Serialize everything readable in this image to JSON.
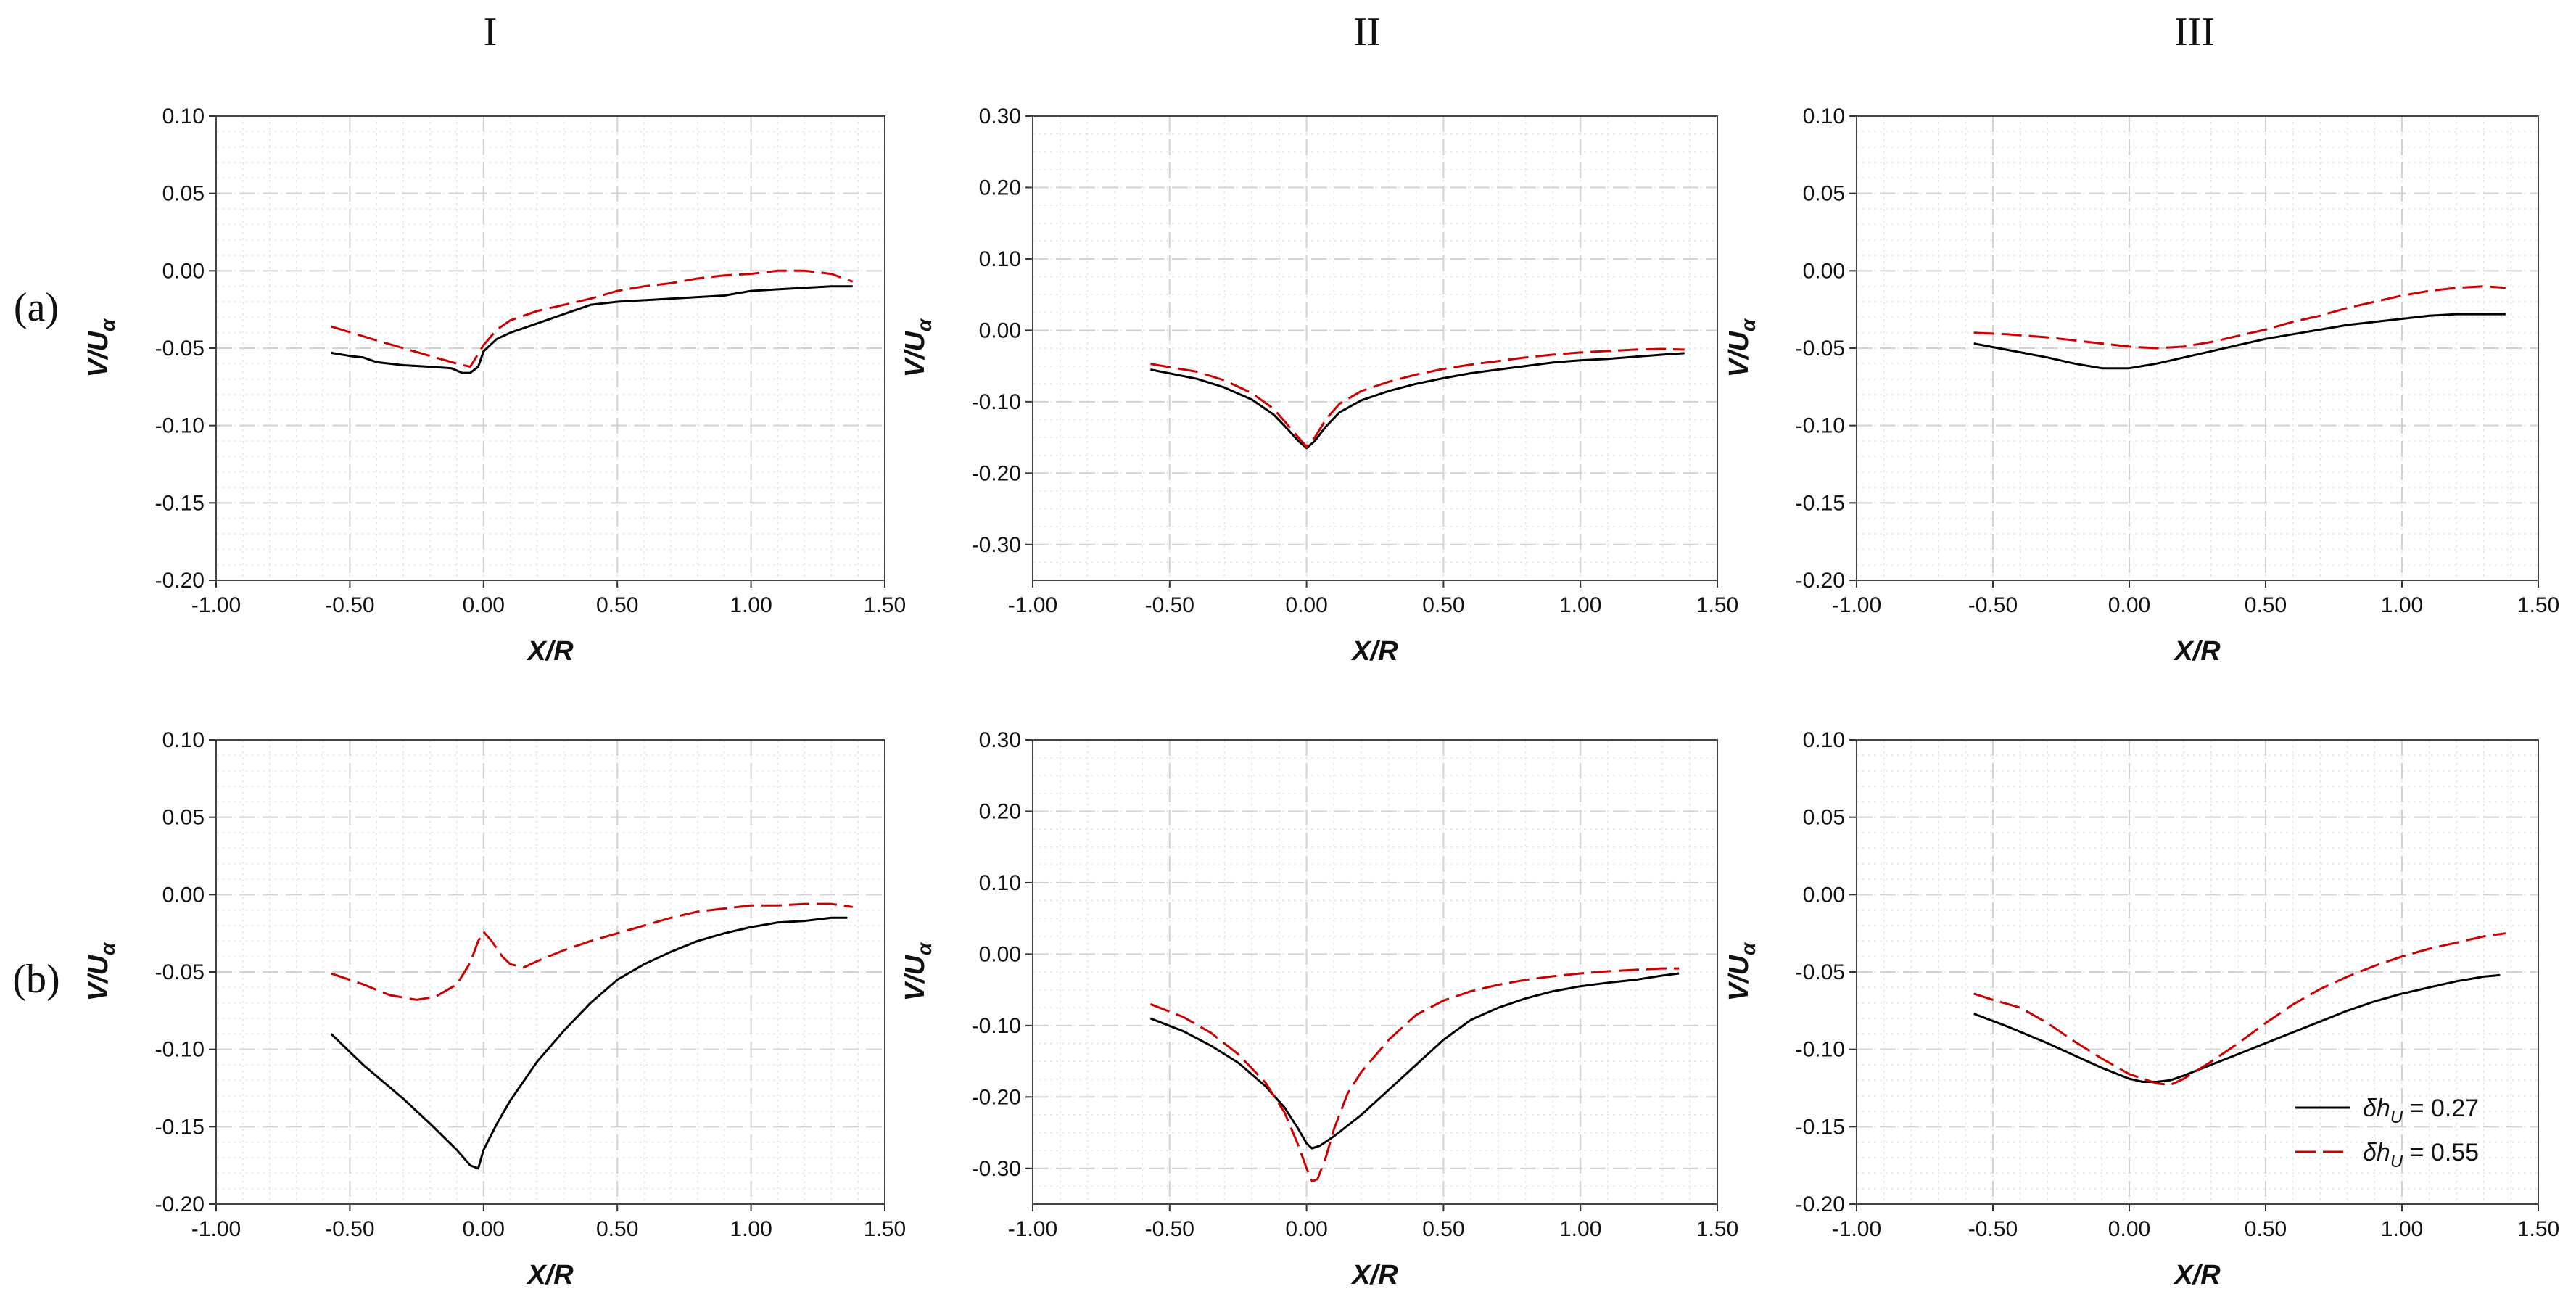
{
  "column_labels": [
    "I",
    "II",
    "III"
  ],
  "row_labels": [
    "(a)",
    "(b)"
  ],
  "legend": {
    "entries": [
      {
        "prefix": "δh",
        "subscript": "U",
        "value_text": " = 0.27",
        "color": "#000000",
        "dash": "solid"
      },
      {
        "prefix": "δh",
        "subscript": "U",
        "value_text": " = 0.55",
        "color": "#cc0000",
        "dash": "dashed"
      }
    ]
  },
  "chart_data": [
    {
      "id": "a-I",
      "type": "line",
      "row": "(a)",
      "column": "I",
      "xlabel": "X/R",
      "ylabel": "V/Uα",
      "xlim": [
        -1.0,
        1.5
      ],
      "ylim": [
        -0.2,
        0.1
      ],
      "xticks": [
        "-1.00",
        "-0.50",
        "0.00",
        "0.50",
        "1.00",
        "1.50"
      ],
      "yticks": [
        "0.10",
        "0.05",
        "0.00",
        "-0.05",
        "-0.10",
        "-0.15",
        "-0.20"
      ],
      "series": [
        {
          "name": "δhU = 0.27",
          "color": "#000000",
          "dash": "solid",
          "x": [
            -0.57,
            -0.5,
            -0.45,
            -0.4,
            -0.3,
            -0.2,
            -0.12,
            -0.08,
            -0.05,
            -0.02,
            0.0,
            0.05,
            0.1,
            0.2,
            0.3,
            0.4,
            0.5,
            0.6,
            0.7,
            0.8,
            0.9,
            1.0,
            1.1,
            1.2,
            1.3,
            1.38
          ],
          "y": [
            -0.053,
            -0.055,
            -0.056,
            -0.059,
            -0.061,
            -0.062,
            -0.063,
            -0.066,
            -0.066,
            -0.062,
            -0.052,
            -0.044,
            -0.04,
            -0.034,
            -0.028,
            -0.022,
            -0.02,
            -0.019,
            -0.018,
            -0.017,
            -0.016,
            -0.013,
            -0.012,
            -0.011,
            -0.01,
            -0.01
          ]
        },
        {
          "name": "δhU = 0.55",
          "color": "#cc0000",
          "dash": "dashed",
          "x": [
            -0.57,
            -0.4,
            -0.2,
            -0.1,
            -0.05,
            0.0,
            0.05,
            0.1,
            0.2,
            0.3,
            0.4,
            0.5,
            0.6,
            0.7,
            0.8,
            0.9,
            1.0,
            1.1,
            1.2,
            1.3,
            1.38
          ],
          "y": [
            -0.036,
            -0.045,
            -0.055,
            -0.06,
            -0.062,
            -0.048,
            -0.038,
            -0.032,
            -0.026,
            -0.022,
            -0.018,
            -0.013,
            -0.01,
            -0.008,
            -0.005,
            -0.003,
            -0.002,
            0.0,
            0.0,
            -0.002,
            -0.007
          ]
        }
      ]
    },
    {
      "id": "a-II",
      "type": "line",
      "row": "(a)",
      "column": "II",
      "xlabel": "X/R",
      "ylabel": "V/Uα",
      "xlim": [
        -1.0,
        1.5
      ],
      "ylim": [
        -0.35,
        0.3
      ],
      "xticks": [
        "-1.00",
        "-0.50",
        "0.00",
        "0.50",
        "1.00",
        "1.50"
      ],
      "yticks": [
        "0.30",
        "0.20",
        "0.10",
        "0.00",
        "-0.10",
        "-0.20",
        "-0.30"
      ],
      "series": [
        {
          "name": "δhU = 0.27",
          "color": "#000000",
          "dash": "solid",
          "x": [
            -0.57,
            -0.4,
            -0.3,
            -0.2,
            -0.12,
            -0.07,
            -0.03,
            0.0,
            0.03,
            0.07,
            0.12,
            0.2,
            0.3,
            0.4,
            0.5,
            0.6,
            0.7,
            0.8,
            0.9,
            1.0,
            1.1,
            1.2,
            1.3,
            1.38
          ],
          "y": [
            -0.055,
            -0.068,
            -0.08,
            -0.097,
            -0.118,
            -0.138,
            -0.155,
            -0.165,
            -0.155,
            -0.135,
            -0.115,
            -0.098,
            -0.085,
            -0.075,
            -0.067,
            -0.06,
            -0.055,
            -0.05,
            -0.045,
            -0.042,
            -0.04,
            -0.037,
            -0.034,
            -0.032
          ]
        },
        {
          "name": "δhU = 0.55",
          "color": "#cc0000",
          "dash": "dashed",
          "x": [
            -0.57,
            -0.4,
            -0.3,
            -0.2,
            -0.12,
            -0.07,
            -0.03,
            0.0,
            0.03,
            0.07,
            0.12,
            0.2,
            0.3,
            0.4,
            0.5,
            0.6,
            0.7,
            0.8,
            0.9,
            1.0,
            1.1,
            1.2,
            1.3,
            1.38
          ],
          "y": [
            -0.047,
            -0.058,
            -0.07,
            -0.088,
            -0.11,
            -0.132,
            -0.15,
            -0.163,
            -0.15,
            -0.125,
            -0.103,
            -0.085,
            -0.072,
            -0.062,
            -0.054,
            -0.048,
            -0.043,
            -0.038,
            -0.034,
            -0.031,
            -0.029,
            -0.027,
            -0.026,
            -0.027
          ]
        }
      ]
    },
    {
      "id": "a-III",
      "type": "line",
      "row": "(a)",
      "column": "III",
      "xlabel": "X/R",
      "ylabel": "V/Uα",
      "xlim": [
        -1.0,
        1.5
      ],
      "ylim": [
        -0.2,
        0.1
      ],
      "xticks": [
        "-1.00",
        "-0.50",
        "0.00",
        "0.50",
        "1.00",
        "1.50"
      ],
      "yticks": [
        "0.10",
        "0.05",
        "0.00",
        "-0.05",
        "-0.10",
        "-0.15",
        "-0.20"
      ],
      "series": [
        {
          "name": "δhU = 0.27",
          "color": "#000000",
          "dash": "solid",
          "x": [
            -0.57,
            -0.45,
            -0.3,
            -0.2,
            -0.1,
            0.0,
            0.1,
            0.2,
            0.3,
            0.4,
            0.5,
            0.6,
            0.7,
            0.8,
            0.9,
            1.0,
            1.1,
            1.2,
            1.3,
            1.38
          ],
          "y": [
            -0.047,
            -0.051,
            -0.056,
            -0.06,
            -0.063,
            -0.063,
            -0.06,
            -0.056,
            -0.052,
            -0.048,
            -0.044,
            -0.041,
            -0.038,
            -0.035,
            -0.033,
            -0.031,
            -0.029,
            -0.028,
            -0.028,
            -0.028
          ]
        },
        {
          "name": "δhU = 0.55",
          "color": "#cc0000",
          "dash": "dashed",
          "x": [
            -0.57,
            -0.45,
            -0.3,
            -0.2,
            -0.1,
            0.0,
            0.1,
            0.2,
            0.3,
            0.4,
            0.5,
            0.6,
            0.7,
            0.8,
            0.9,
            1.0,
            1.1,
            1.2,
            1.3,
            1.38
          ],
          "y": [
            -0.04,
            -0.041,
            -0.043,
            -0.045,
            -0.047,
            -0.049,
            -0.05,
            -0.049,
            -0.046,
            -0.042,
            -0.038,
            -0.033,
            -0.029,
            -0.024,
            -0.02,
            -0.016,
            -0.013,
            -0.011,
            -0.01,
            -0.011
          ]
        }
      ]
    },
    {
      "id": "b-I",
      "type": "line",
      "row": "(b)",
      "column": "I",
      "xlabel": "X/R",
      "ylabel": "V/Uα",
      "xlim": [
        -1.0,
        1.5
      ],
      "ylim": [
        -0.2,
        0.1
      ],
      "xticks": [
        "-1.00",
        "-0.50",
        "0.00",
        "0.50",
        "1.00",
        "1.50"
      ],
      "yticks": [
        "0.10",
        "0.05",
        "0.00",
        "-0.05",
        "-0.10",
        "-0.15",
        "-0.20"
      ],
      "series": [
        {
          "name": "δhU = 0.27",
          "color": "#000000",
          "dash": "solid",
          "x": [
            -0.57,
            -0.45,
            -0.3,
            -0.2,
            -0.1,
            -0.05,
            -0.02,
            0.0,
            0.05,
            0.1,
            0.2,
            0.3,
            0.4,
            0.5,
            0.6,
            0.7,
            0.8,
            0.9,
            1.0,
            1.1,
            1.2,
            1.3,
            1.36
          ],
          "y": [
            -0.09,
            -0.11,
            -0.132,
            -0.148,
            -0.165,
            -0.175,
            -0.177,
            -0.165,
            -0.148,
            -0.133,
            -0.108,
            -0.088,
            -0.07,
            -0.055,
            -0.045,
            -0.037,
            -0.03,
            -0.025,
            -0.021,
            -0.018,
            -0.017,
            -0.015,
            -0.015
          ]
        },
        {
          "name": "δhU = 0.55",
          "color": "#cc0000",
          "dash": "dashed",
          "x": [
            -0.57,
            -0.45,
            -0.35,
            -0.25,
            -0.18,
            -0.1,
            -0.05,
            -0.02,
            0.0,
            0.03,
            0.07,
            0.1,
            0.15,
            0.2,
            0.3,
            0.4,
            0.5,
            0.6,
            0.7,
            0.8,
            0.9,
            1.0,
            1.1,
            1.2,
            1.3,
            1.38
          ],
          "y": [
            -0.051,
            -0.058,
            -0.065,
            -0.068,
            -0.066,
            -0.058,
            -0.044,
            -0.03,
            -0.024,
            -0.03,
            -0.04,
            -0.045,
            -0.047,
            -0.043,
            -0.036,
            -0.03,
            -0.025,
            -0.02,
            -0.015,
            -0.011,
            -0.009,
            -0.007,
            -0.007,
            -0.006,
            -0.006,
            -0.008
          ]
        }
      ]
    },
    {
      "id": "b-II",
      "type": "line",
      "row": "(b)",
      "column": "II",
      "xlabel": "X/R",
      "ylabel": "V/Uα",
      "xlim": [
        -1.0,
        1.5
      ],
      "ylim": [
        -0.35,
        0.3
      ],
      "xticks": [
        "-1.00",
        "-0.50",
        "0.00",
        "0.50",
        "1.00",
        "1.50"
      ],
      "yticks": [
        "0.30",
        "0.20",
        "0.10",
        "0.00",
        "-0.10",
        "-0.20",
        "-0.30"
      ],
      "series": [
        {
          "name": "δhU = 0.27",
          "color": "#000000",
          "dash": "solid",
          "x": [
            -0.57,
            -0.45,
            -0.35,
            -0.25,
            -0.15,
            -0.08,
            -0.03,
            0.0,
            0.02,
            0.05,
            0.1,
            0.2,
            0.3,
            0.4,
            0.5,
            0.6,
            0.7,
            0.8,
            0.9,
            1.0,
            1.1,
            1.2,
            1.3,
            1.36
          ],
          "y": [
            -0.09,
            -0.108,
            -0.128,
            -0.152,
            -0.185,
            -0.215,
            -0.245,
            -0.265,
            -0.272,
            -0.268,
            -0.255,
            -0.225,
            -0.19,
            -0.155,
            -0.12,
            -0.092,
            -0.075,
            -0.062,
            -0.052,
            -0.045,
            -0.04,
            -0.036,
            -0.03,
            -0.027
          ]
        },
        {
          "name": "δhU = 0.55",
          "color": "#cc0000",
          "dash": "dashed",
          "x": [
            -0.57,
            -0.45,
            -0.35,
            -0.25,
            -0.15,
            -0.08,
            -0.03,
            0.0,
            0.02,
            0.04,
            0.07,
            0.1,
            0.15,
            0.2,
            0.3,
            0.4,
            0.5,
            0.6,
            0.7,
            0.8,
            0.9,
            1.0,
            1.1,
            1.2,
            1.3,
            1.36
          ],
          "y": [
            -0.07,
            -0.088,
            -0.11,
            -0.14,
            -0.18,
            -0.222,
            -0.268,
            -0.3,
            -0.318,
            -0.315,
            -0.285,
            -0.245,
            -0.195,
            -0.165,
            -0.12,
            -0.085,
            -0.065,
            -0.052,
            -0.043,
            -0.036,
            -0.031,
            -0.027,
            -0.024,
            -0.022,
            -0.02,
            -0.02
          ]
        }
      ]
    },
    {
      "id": "b-III",
      "type": "line",
      "row": "(b)",
      "column": "III",
      "xlabel": "X/R",
      "ylabel": "V/Uα",
      "xlim": [
        -1.0,
        1.5
      ],
      "ylim": [
        -0.2,
        0.1
      ],
      "xticks": [
        "-1.00",
        "-0.50",
        "0.00",
        "0.50",
        "1.00",
        "1.50"
      ],
      "yticks": [
        "0.10",
        "0.05",
        "0.00",
        "-0.05",
        "-0.10",
        "-0.15",
        "-0.20"
      ],
      "series": [
        {
          "name": "δhU = 0.27",
          "color": "#000000",
          "dash": "solid",
          "x": [
            -0.57,
            -0.45,
            -0.3,
            -0.2,
            -0.1,
            0.0,
            0.05,
            0.1,
            0.15,
            0.2,
            0.3,
            0.4,
            0.5,
            0.6,
            0.7,
            0.8,
            0.9,
            1.0,
            1.1,
            1.2,
            1.3,
            1.36
          ],
          "y": [
            -0.077,
            -0.085,
            -0.096,
            -0.104,
            -0.112,
            -0.119,
            -0.121,
            -0.121,
            -0.12,
            -0.117,
            -0.11,
            -0.103,
            -0.096,
            -0.089,
            -0.082,
            -0.075,
            -0.069,
            -0.064,
            -0.06,
            -0.056,
            -0.053,
            -0.052
          ]
        },
        {
          "name": "δhU = 0.55",
          "color": "#cc0000",
          "dash": "dashed",
          "x": [
            -0.57,
            -0.5,
            -0.4,
            -0.3,
            -0.2,
            -0.1,
            0.0,
            0.1,
            0.15,
            0.2,
            0.3,
            0.4,
            0.5,
            0.6,
            0.7,
            0.8,
            0.9,
            1.0,
            1.1,
            1.2,
            1.3,
            1.38
          ],
          "y": [
            -0.064,
            -0.068,
            -0.073,
            -0.083,
            -0.095,
            -0.106,
            -0.116,
            -0.122,
            -0.123,
            -0.119,
            -0.108,
            -0.096,
            -0.083,
            -0.071,
            -0.061,
            -0.053,
            -0.046,
            -0.04,
            -0.035,
            -0.031,
            -0.027,
            -0.025
          ]
        }
      ]
    }
  ]
}
